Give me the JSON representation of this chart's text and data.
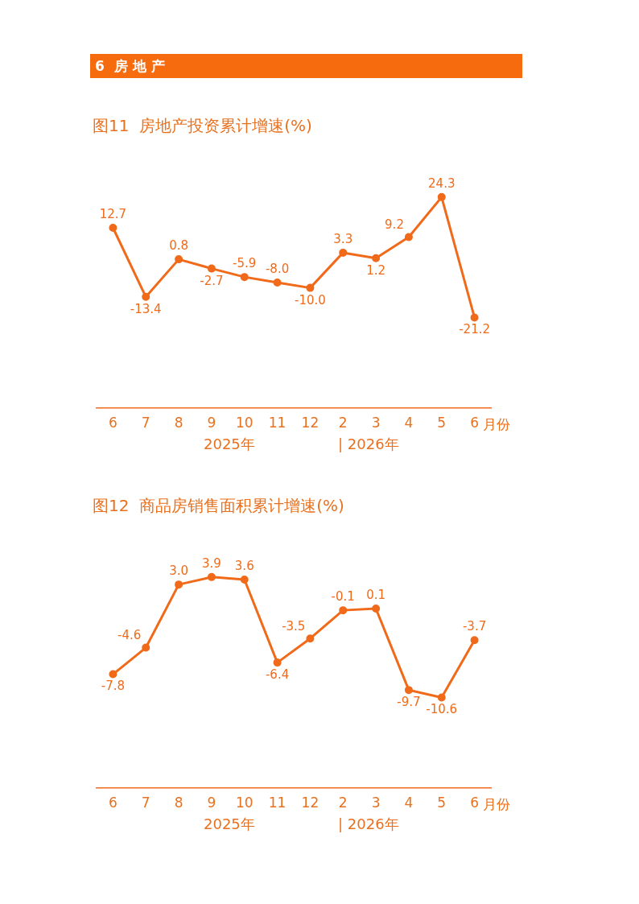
{
  "chart_data": [
    {
      "type": "other",
      "title": "6  房 地 产"
    },
    {
      "type": "line",
      "title": "图11  房地产投资累计增速(%)",
      "xlabel": "月份",
      "categories": [
        "6",
        "7",
        "8",
        "9",
        "10",
        "11",
        "12",
        "2",
        "3",
        "4",
        "5",
        "6"
      ],
      "series": [
        {
          "color": "#f06a1a",
          "values": [
            12.7,
            -13.4,
            0.8,
            -2.7,
            -5.9,
            -8.0,
            -10.0,
            3.3,
            1.2,
            9.2,
            24.3,
            -21.2
          ],
          "value_labels": [
            "12.7",
            "-13.4",
            "0.8",
            "-2.7",
            "-5.9",
            "-8.0",
            "-10.0",
            "3.3",
            "1.2",
            "9.2",
            "24.3",
            "-21.2"
          ]
        }
      ],
      "marker": "circle",
      "grid": false,
      "legend": false,
      "tick_labels": "x",
      "annotations": [
        "2025年",
        "| 2026年"
      ]
    },
    {
      "type": "line",
      "title": "图12  商品房销售面积累计增速(%)",
      "xlabel": "月份",
      "categories": [
        "6",
        "7",
        "8",
        "9",
        "10",
        "11",
        "12",
        "2",
        "3",
        "4",
        "5",
        "6"
      ],
      "series": [
        {
          "color": "#f06a1a",
          "values": [
            -7.8,
            -4.6,
            3.0,
            3.9,
            3.6,
            -6.4,
            -3.5,
            -0.1,
            0.1,
            -9.7,
            -10.6,
            -3.7
          ],
          "value_labels": [
            "-7.8",
            "-4.6",
            "3.0",
            "3.9",
            "3.6",
            "-6.4",
            "-3.5",
            "-0.1",
            "0.1",
            "-9.7",
            "-10.6",
            "-3.7"
          ]
        }
      ],
      "marker": "circle",
      "grid": false,
      "legend": false,
      "tick_labels": "x",
      "annotations": [
        "2025年",
        "| 2026年"
      ]
    }
  ]
}
